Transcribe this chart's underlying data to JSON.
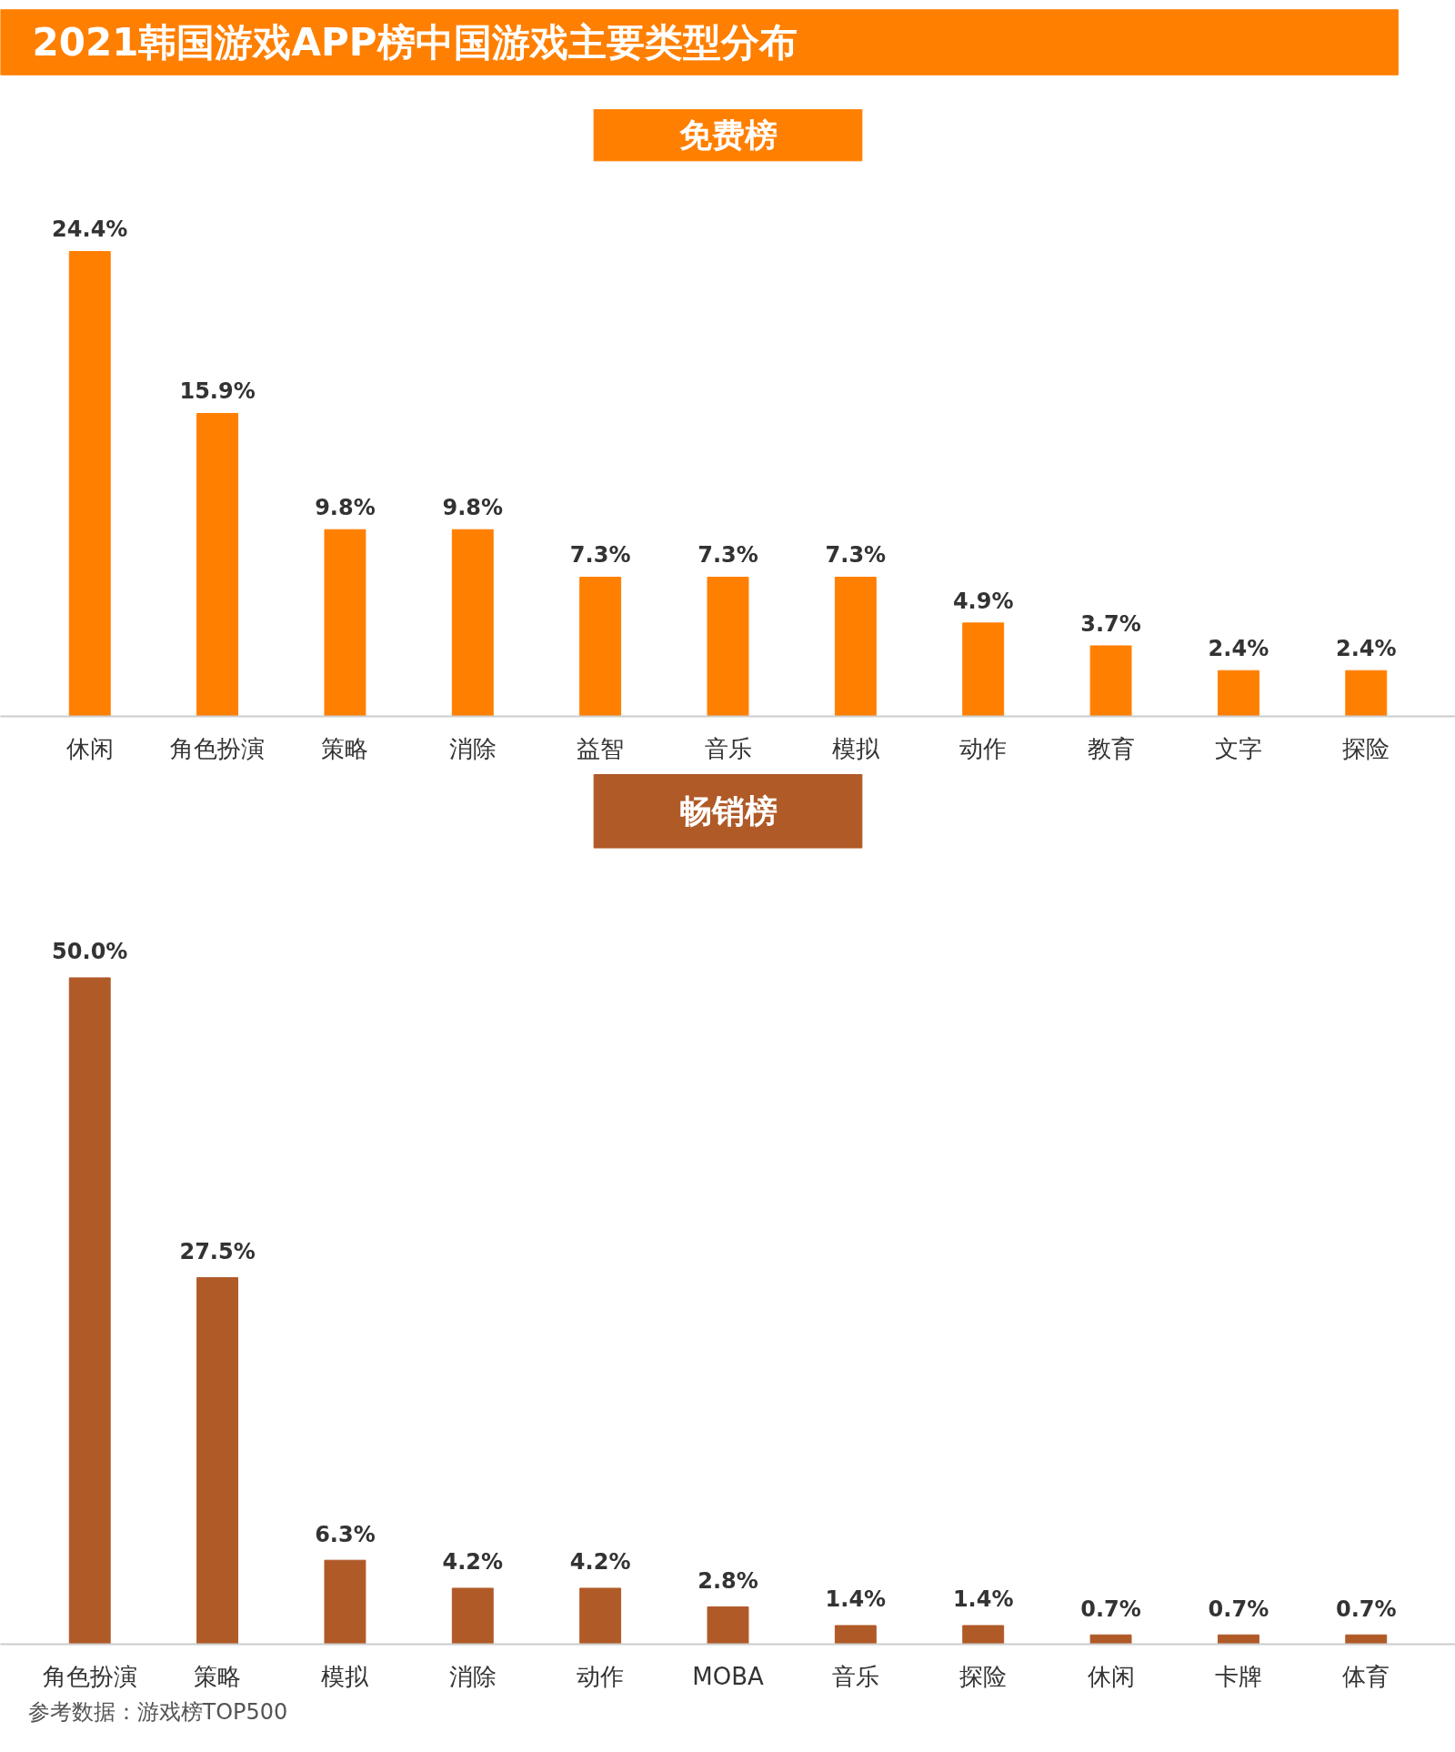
{
  "chart_data": [
    {
      "type": "bar",
      "title": "2021韩国游戏APP榜中国游戏主要类型分布",
      "subtitle": "免费榜",
      "color": "#ff7f00",
      "categories": [
        "休闲",
        "角色扮演",
        "策略",
        "消除",
        "益智",
        "音乐",
        "模拟",
        "动作",
        "教育",
        "文字",
        "探险"
      ],
      "values": [
        24.4,
        15.9,
        9.8,
        9.8,
        7.3,
        7.3,
        7.3,
        4.9,
        3.7,
        2.4,
        2.4
      ],
      "value_labels": [
        "24.4%",
        "15.9%",
        "9.8%",
        "9.8%",
        "7.3%",
        "7.3%",
        "7.3%",
        "4.9%",
        "3.7%",
        "2.4%",
        "2.4%"
      ]
    },
    {
      "type": "bar",
      "subtitle": "畅销榜",
      "color": "#b05a28",
      "categories": [
        "角色扮演",
        "策略",
        "模拟",
        "消除",
        "动作",
        "MOBA",
        "音乐",
        "探险",
        "休闲",
        "卡牌",
        "体育"
      ],
      "values": [
        50.0,
        27.5,
        6.3,
        4.2,
        4.2,
        2.8,
        1.4,
        1.4,
        0.7,
        0.7,
        0.7
      ],
      "value_labels": [
        "50.0%",
        "27.5%",
        "6.3%",
        "4.2%",
        "4.2%",
        "2.8%",
        "1.4%",
        "1.4%",
        "0.7%",
        "0.7%",
        "0.7%"
      ],
      "annotations": [
        "参考数据：游戏榜TOP500"
      ]
    }
  ]
}
